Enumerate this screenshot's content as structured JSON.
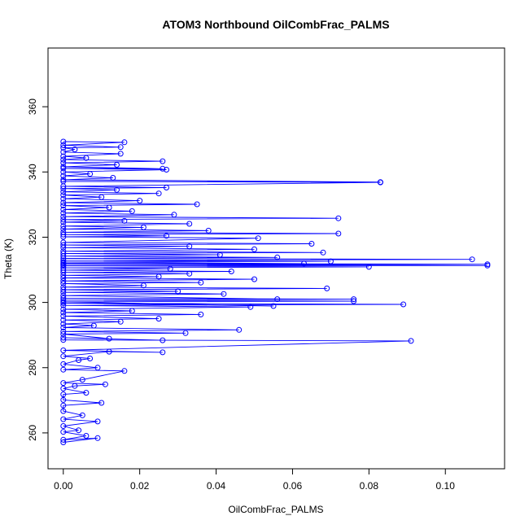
{
  "chart_data": {
    "type": "line",
    "title": "ATOM3 Northbound OilCombFrac_PALMS",
    "xlabel": "OilCombFrac_PALMS",
    "ylabel": "Theta (K)",
    "xlim": [
      -0.004,
      0.1155
    ],
    "ylim": [
      249,
      378
    ],
    "x_ticks": [
      0.0,
      0.02,
      0.04,
      0.06,
      0.08,
      0.1
    ],
    "x_tick_labels": [
      "0.00",
      "0.02",
      "0.04",
      "0.06",
      "0.08",
      "0.10"
    ],
    "y_ticks": [
      260,
      280,
      300,
      320,
      340,
      360
    ],
    "y_tick_labels": [
      "260",
      "280",
      "300",
      "320",
      "340",
      "360"
    ],
    "marker": "open-circle",
    "color": "#0000ff",
    "grid": false,
    "legend": "none",
    "series": [
      {
        "values_note_omitted": true,
        "points": [
          [
            0.0,
            257.1
          ],
          [
            0.009,
            258.4
          ],
          [
            0.0,
            257.9
          ],
          [
            0.006,
            259.1
          ],
          [
            0.0,
            260.3
          ],
          [
            0.004,
            260.8
          ],
          [
            0.0,
            262.1
          ],
          [
            0.009,
            263.5
          ],
          [
            0.0,
            264.2
          ],
          [
            0.005,
            265.4
          ],
          [
            0.0,
            266.7
          ],
          [
            0.0,
            268.4
          ],
          [
            0.01,
            269.2
          ],
          [
            0.0,
            270.1
          ],
          [
            0.0,
            271.8
          ],
          [
            0.006,
            272.3
          ],
          [
            0.0,
            273.6
          ],
          [
            0.003,
            274.4
          ],
          [
            0.011,
            274.9
          ],
          [
            0.0,
            275.3
          ],
          [
            0.005,
            276.3
          ],
          [
            0.016,
            279.0
          ],
          [
            0.0,
            279.4
          ],
          [
            0.009,
            280.0
          ],
          [
            0.0,
            281.1
          ],
          [
            0.004,
            282.3
          ],
          [
            0.007,
            282.8
          ],
          [
            0.0,
            283.5
          ],
          [
            0.012,
            284.9
          ],
          [
            0.026,
            284.7
          ],
          [
            0.0,
            285.3
          ],
          [
            0.091,
            288.2
          ],
          [
            0.0,
            288.5
          ],
          [
            0.026,
            288.4
          ],
          [
            0.0,
            289.2
          ],
          [
            0.012,
            288.9
          ],
          [
            0.0,
            290.3
          ],
          [
            0.032,
            290.6
          ],
          [
            0.0,
            291.1
          ],
          [
            0.046,
            291.6
          ],
          [
            0.0,
            292.3
          ],
          [
            0.008,
            292.9
          ],
          [
            0.0,
            293.4
          ],
          [
            0.015,
            294.1
          ],
          [
            0.0,
            294.6
          ],
          [
            0.025,
            295.0
          ],
          [
            0.0,
            295.8
          ],
          [
            0.036,
            296.3
          ],
          [
            0.0,
            296.9
          ],
          [
            0.018,
            297.4
          ],
          [
            0.0,
            297.9
          ],
          [
            0.049,
            298.6
          ],
          [
            0.0,
            299.1
          ],
          [
            0.089,
            299.4
          ],
          [
            0.0,
            299.8
          ],
          [
            0.055,
            298.9
          ],
          [
            0.0,
            300.2
          ],
          [
            0.076,
            300.4
          ],
          [
            0.0,
            300.7
          ],
          [
            0.076,
            301.0
          ],
          [
            0.0,
            301.3
          ],
          [
            0.056,
            301.0
          ],
          [
            0.0,
            302.1
          ],
          [
            0.042,
            302.6
          ],
          [
            0.0,
            303.1
          ],
          [
            0.03,
            303.4
          ],
          [
            0.0,
            303.9
          ],
          [
            0.069,
            304.3
          ],
          [
            0.0,
            304.7
          ],
          [
            0.021,
            305.2
          ],
          [
            0.0,
            305.8
          ],
          [
            0.036,
            306.1
          ],
          [
            0.0,
            306.6
          ],
          [
            0.05,
            307.1
          ],
          [
            0.0,
            307.5
          ],
          [
            0.025,
            307.9
          ],
          [
            0.0,
            308.3
          ],
          [
            0.033,
            308.8
          ],
          [
            0.0,
            309.2
          ],
          [
            0.044,
            309.5
          ],
          [
            0.0,
            309.9
          ],
          [
            0.028,
            310.3
          ],
          [
            0.0,
            310.6
          ],
          [
            0.08,
            310.9
          ],
          [
            0.0,
            311.2
          ],
          [
            0.111,
            311.3
          ],
          [
            0.0,
            311.6
          ],
          [
            0.111,
            311.7
          ],
          [
            0.0,
            312.0
          ],
          [
            0.063,
            311.9
          ],
          [
            0.0,
            312.4
          ],
          [
            0.07,
            312.6
          ],
          [
            0.0,
            312.9
          ],
          [
            0.107,
            313.2
          ],
          [
            0.0,
            313.5
          ],
          [
            0.056,
            313.8
          ],
          [
            0.0,
            314.2
          ],
          [
            0.041,
            314.6
          ],
          [
            0.0,
            315.0
          ],
          [
            0.068,
            315.3
          ],
          [
            0.0,
            315.7
          ],
          [
            0.05,
            316.3
          ],
          [
            0.0,
            316.8
          ],
          [
            0.033,
            317.2
          ],
          [
            0.0,
            317.6
          ],
          [
            0.065,
            318.0
          ],
          [
            0.0,
            318.4
          ],
          [
            0.051,
            319.7
          ],
          [
            0.0,
            320.1
          ],
          [
            0.027,
            320.4
          ],
          [
            0.0,
            320.8
          ],
          [
            0.072,
            321.1
          ],
          [
            0.0,
            321.5
          ],
          [
            0.038,
            322.0
          ],
          [
            0.0,
            322.5
          ],
          [
            0.021,
            323.0
          ],
          [
            0.0,
            323.4
          ],
          [
            0.033,
            324.1
          ],
          [
            0.0,
            324.6
          ],
          [
            0.016,
            325.0
          ],
          [
            0.0,
            325.4
          ],
          [
            0.072,
            325.8
          ],
          [
            0.0,
            326.3
          ],
          [
            0.029,
            326.9
          ],
          [
            0.0,
            327.4
          ],
          [
            0.018,
            328.0
          ],
          [
            0.0,
            328.5
          ],
          [
            0.012,
            329.1
          ],
          [
            0.0,
            329.7
          ],
          [
            0.035,
            330.1
          ],
          [
            0.0,
            330.6
          ],
          [
            0.02,
            331.2
          ],
          [
            0.0,
            331.8
          ],
          [
            0.01,
            332.3
          ],
          [
            0.0,
            332.9
          ],
          [
            0.025,
            333.4
          ],
          [
            0.0,
            333.9
          ],
          [
            0.014,
            334.5
          ],
          [
            0.0,
            334.9
          ],
          [
            0.027,
            335.2
          ],
          [
            0.0,
            335.6
          ],
          [
            0.083,
            336.8
          ],
          [
            0.0,
            337.1
          ],
          [
            0.083,
            336.9
          ],
          [
            0.0,
            337.6
          ],
          [
            0.013,
            338.2
          ],
          [
            0.0,
            338.8
          ],
          [
            0.007,
            339.4
          ],
          [
            0.0,
            340.0
          ],
          [
            0.027,
            340.7
          ],
          [
            0.0,
            341.1
          ],
          [
            0.026,
            341.0
          ],
          [
            0.0,
            341.6
          ],
          [
            0.014,
            342.2
          ],
          [
            0.0,
            342.8
          ],
          [
            0.026,
            343.3
          ],
          [
            0.0,
            343.8
          ],
          [
            0.006,
            344.3
          ],
          [
            0.0,
            344.8
          ],
          [
            0.015,
            345.6
          ],
          [
            0.0,
            346.1
          ],
          [
            0.003,
            346.9
          ],
          [
            0.0,
            347.4
          ],
          [
            0.015,
            347.6
          ],
          [
            0.0,
            348.2
          ],
          [
            0.016,
            349.1
          ],
          [
            0.0,
            349.3
          ]
        ]
      }
    ]
  }
}
